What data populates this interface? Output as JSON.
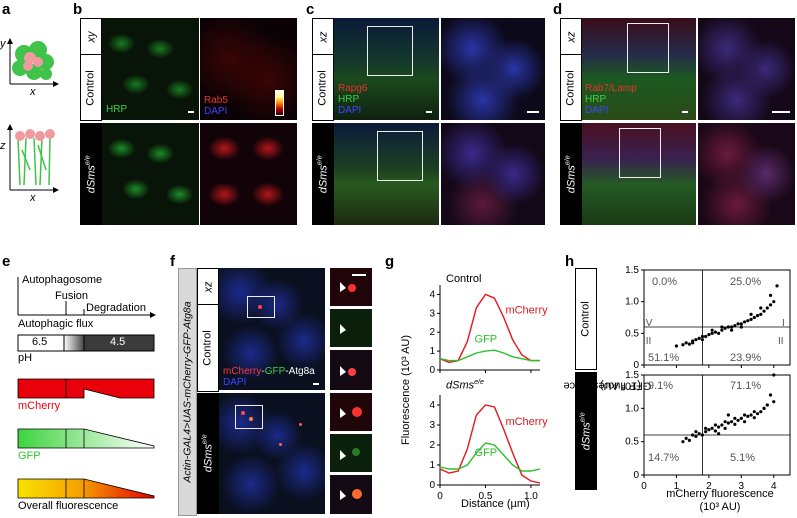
{
  "panels": {
    "a": {
      "letter": "a",
      "axes": {
        "y": "y",
        "x1": "x",
        "z": "z",
        "x2": "x"
      }
    },
    "b": {
      "letter": "b",
      "view": "xy",
      "row_control": "Control",
      "row_mutant": "dSms",
      "row_mutant_sup": "e/e",
      "label_hrp": "HRP",
      "label_rab5": "Rab5",
      "label_dapi": "DAPI"
    },
    "c": {
      "letter": "c",
      "view": "xz",
      "row_control": "Control",
      "row_mutant": "dSms",
      "row_mutant_sup": "e/e",
      "label_rapgef": "Rapg6",
      "label_hrp": "HRP",
      "label_dapi": "DAPI"
    },
    "d": {
      "letter": "d",
      "view": "xz",
      "row_control": "Control",
      "row_mutant": "dSms",
      "row_mutant_sup": "e/e",
      "label_rab": "Rab7/Lamp",
      "label_hrp": "HRP",
      "label_dapi": "DAPI"
    },
    "e": {
      "letter": "e",
      "autophagosome": "Autophagosome",
      "fusion": "Fusion",
      "degradation": "Degradation",
      "flux": "Autophagic flux",
      "ph_left": "6.5",
      "ph_right": "4.5",
      "ph": "pH",
      "mcherry": "mCherry",
      "gfp": "GFP",
      "overall": "Overall fluorescence"
    },
    "f": {
      "letter": "f",
      "view": "xz",
      "genotype": "Actin-GAL4>UAS-mCherry-GFP-Atg8a",
      "row_control": "Control",
      "row_mutant": "dSms",
      "row_mutant_sup": "e/e",
      "legend_mcherry": "mCherry",
      "legend_dash1": "-",
      "legend_gfp": "GFP",
      "legend_rest": "-Atg8a",
      "legend_dapi": "DAPI"
    },
    "g": {
      "letter": "g",
      "title_control": "Control",
      "title_mutant": "dSms",
      "title_mutant_sup": "e/e",
      "series_mcherry": "mCherry",
      "series_gfp": "GFP",
      "ylabel": "Fluorescence (10³ AU)",
      "xlabel": "Distance (µm)"
    },
    "h": {
      "letter": "h",
      "row_control": "Control",
      "row_mutant": "dSms",
      "row_mutant_sup": "e/e",
      "ylabel": "GFP fluorescence",
      "ylabel_unit": "(10³ AU)",
      "xlabel": "mCherry fluorescence",
      "xlabel_unit": "(10³ AU)",
      "quadrants": {
        "I": "I",
        "II": "II",
        "III": "III",
        "IV": "IV"
      },
      "control_pct": {
        "tl": "0.0%",
        "tr": "25.0%",
        "bl": "51.1%",
        "br": "23.9%"
      },
      "mutant_pct": {
        "tl": "9.1%",
        "tr": "71.1%",
        "bl": "14.7%",
        "br": "5.1%"
      }
    }
  },
  "chart_data": [
    {
      "type": "line",
      "panel": "g-top",
      "title": "Control",
      "x": [
        0,
        0.1,
        0.2,
        0.3,
        0.4,
        0.5,
        0.6,
        0.7,
        0.8,
        0.9,
        1.0,
        1.1
      ],
      "series": [
        {
          "name": "mCherry",
          "values": [
            0.6,
            0.4,
            0.5,
            1.5,
            3.3,
            4.0,
            3.8,
            2.8,
            1.6,
            0.8,
            0.5,
            0.5
          ]
        },
        {
          "name": "GFP",
          "values": [
            0.6,
            0.5,
            0.5,
            0.7,
            0.9,
            1.0,
            1.05,
            0.9,
            0.7,
            0.6,
            0.5,
            0.5
          ]
        }
      ],
      "xlabel": "Distance (µm)",
      "ylabel": "Fluorescence (10³ AU)",
      "xlim": [
        0,
        1.1
      ],
      "ylim": [
        0,
        4.5
      ],
      "xticks": [
        0,
        0.5,
        1.0
      ],
      "yticks": [
        0,
        1,
        2,
        3,
        4
      ]
    },
    {
      "type": "line",
      "panel": "g-bottom",
      "title": "dSms e/e",
      "x": [
        0,
        0.1,
        0.2,
        0.3,
        0.4,
        0.5,
        0.6,
        0.7,
        0.8,
        0.9,
        1.0,
        1.1
      ],
      "series": [
        {
          "name": "mCherry",
          "values": [
            0.8,
            0.6,
            0.7,
            1.8,
            3.5,
            4.0,
            3.9,
            2.8,
            1.6,
            0.5,
            0.2,
            0.1
          ]
        },
        {
          "name": "GFP",
          "values": [
            0.9,
            0.8,
            0.8,
            1.0,
            1.6,
            2.1,
            2.0,
            1.5,
            1.0,
            0.7,
            0.7,
            0.8
          ]
        }
      ],
      "xlabel": "Distance (µm)",
      "ylabel": "Fluorescence (10³ AU)",
      "xlim": [
        0,
        1.1
      ],
      "ylim": [
        0,
        4.5
      ],
      "xticks": [
        0,
        0.5,
        1.0
      ],
      "yticks": [
        0,
        1,
        2,
        3,
        4
      ]
    },
    {
      "type": "scatter",
      "panel": "h-control",
      "x": [
        1.0,
        1.2,
        1.3,
        1.4,
        1.5,
        1.6,
        1.7,
        1.8,
        1.9,
        2.0,
        2.1,
        2.2,
        2.3,
        2.4,
        2.5,
        2.6,
        2.7,
        2.8,
        2.9,
        3.0,
        3.1,
        3.2,
        3.3,
        3.4,
        3.5,
        3.6,
        3.7,
        3.8,
        3.9,
        4.0,
        1.5,
        1.8,
        2.1,
        2.4,
        2.7,
        3.0,
        3.3,
        3.6,
        3.9,
        4.1
      ],
      "y": [
        0.3,
        0.32,
        0.35,
        0.33,
        0.38,
        0.4,
        0.42,
        0.4,
        0.45,
        0.48,
        0.5,
        0.52,
        0.5,
        0.55,
        0.58,
        0.6,
        0.55,
        0.62,
        0.65,
        0.6,
        0.68,
        0.7,
        0.72,
        0.75,
        0.78,
        0.8,
        0.85,
        0.9,
        0.95,
        1.0,
        0.35,
        0.45,
        0.55,
        0.6,
        0.6,
        0.65,
        0.8,
        0.9,
        1.1,
        1.25
      ],
      "xlim": [
        0,
        4.5
      ],
      "ylim": [
        0,
        1.5
      ],
      "xticks": [
        0,
        1,
        2,
        3,
        4
      ],
      "yticks": [
        0,
        0.5,
        1.0,
        1.5
      ],
      "threshold_x": 1.8,
      "threshold_y": 0.6
    },
    {
      "type": "scatter",
      "panel": "h-mutant",
      "x": [
        1.2,
        1.3,
        1.4,
        1.5,
        1.6,
        1.7,
        1.8,
        1.9,
        2.0,
        2.1,
        2.2,
        2.3,
        2.4,
        2.5,
        2.6,
        2.7,
        2.8,
        2.9,
        3.0,
        3.1,
        3.2,
        3.3,
        3.4,
        3.5,
        3.6,
        3.7,
        3.8,
        3.9,
        4.0,
        1.6,
        1.9,
        2.2,
        2.5,
        2.8,
        3.1,
        3.4,
        3.7,
        4.0,
        2.3,
        2.6
      ],
      "y": [
        0.5,
        0.55,
        0.52,
        0.6,
        0.58,
        0.62,
        0.6,
        0.65,
        0.68,
        0.7,
        0.66,
        0.72,
        0.75,
        0.7,
        0.78,
        0.8,
        0.76,
        0.82,
        0.85,
        0.8,
        0.88,
        0.9,
        0.86,
        0.92,
        0.95,
        1.0,
        1.05,
        1.2,
        1.5,
        0.65,
        0.7,
        0.75,
        0.8,
        0.85,
        0.9,
        0.95,
        1.0,
        1.1,
        0.62,
        0.9
      ],
      "xlim": [
        0,
        4.5
      ],
      "ylim": [
        0,
        1.5
      ],
      "xticks": [
        0,
        1,
        2,
        3,
        4
      ],
      "yticks": [
        0,
        0.5,
        1.0,
        1.5
      ],
      "threshold_x": 1.8,
      "threshold_y": 0.6
    }
  ]
}
